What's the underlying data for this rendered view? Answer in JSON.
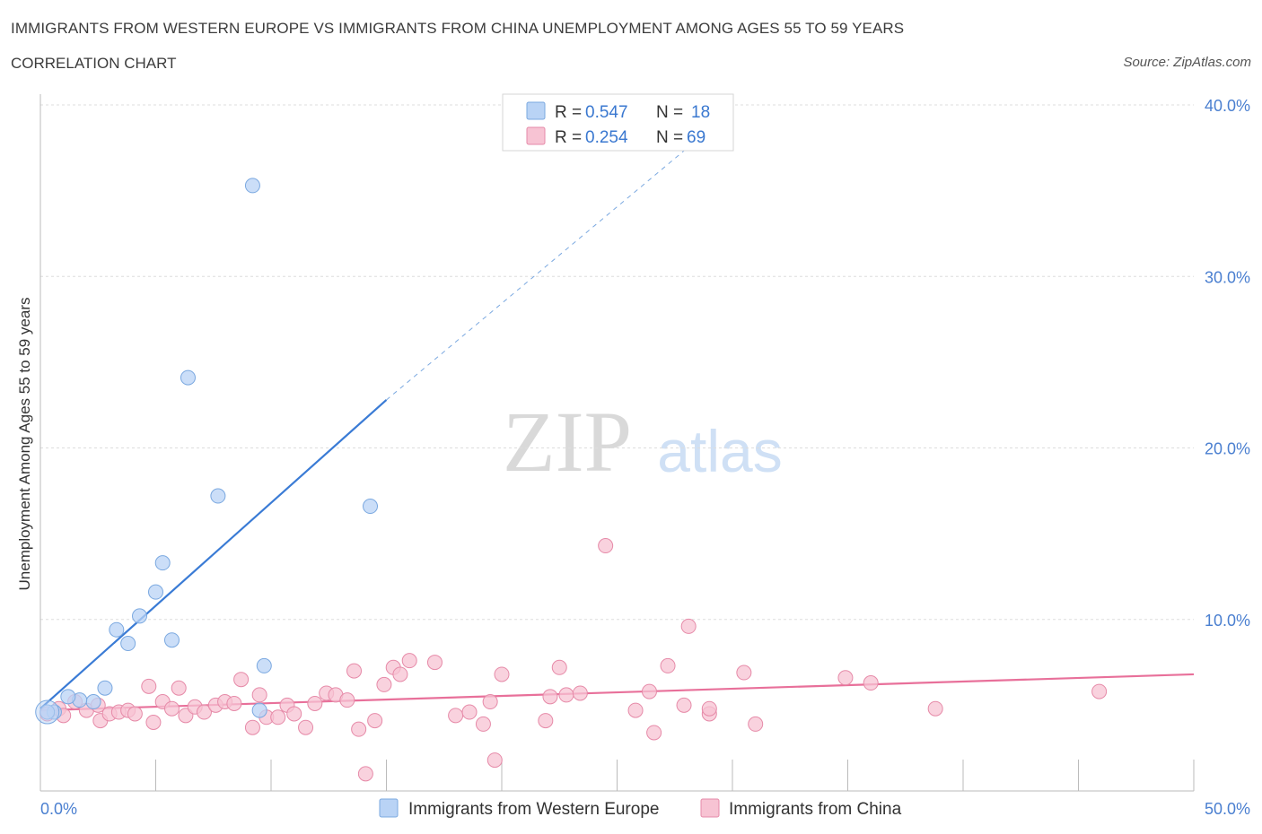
{
  "header": {
    "title": "IMMIGRANTS FROM WESTERN EUROPE VS IMMIGRANTS FROM CHINA UNEMPLOYMENT AMONG AGES 55 TO 59 YEARS",
    "subtitle": "CORRELATION CHART",
    "source": "Source: ZipAtlas.com"
  },
  "watermark": {
    "zip": "ZIP",
    "atlas": "atlas"
  },
  "legend_top": {
    "rows": [
      {
        "r_label": "R = ",
        "r_value": "0.547",
        "n_label": "N = ",
        "n_value": "18"
      },
      {
        "r_label": "R = ",
        "r_value": "0.254",
        "n_label": "N = ",
        "n_value": "69"
      }
    ]
  },
  "colors": {
    "blue_fill": "#b9d3f5",
    "blue_stroke": "#7aa8e0",
    "blue_line": "#3a7bd5",
    "pink_fill": "#f7c3d3",
    "pink_stroke": "#e68aa8",
    "pink_line": "#e8709a",
    "axis_text": "#4a7fd0",
    "grid": "#dddddd"
  },
  "chart_data": {
    "type": "scatter",
    "title": "IMMIGRANTS FROM WESTERN EUROPE VS IMMIGRANTS FROM CHINA UNEMPLOYMENT AMONG AGES 55 TO 59 YEARS",
    "xlabel": "",
    "ylabel": "Unemployment Among Ages 55 to 59 years",
    "xlim": [
      0,
      50
    ],
    "ylim": [
      0,
      40
    ],
    "x_tick_labels": [
      "0.0%",
      "50.0%"
    ],
    "y_ticks": [
      10,
      20,
      30,
      40
    ],
    "y_tick_labels": [
      "10.0%",
      "20.0%",
      "30.0%",
      "40.0%"
    ],
    "legend_position": "bottom",
    "series": [
      {
        "name": "Immigrants from Western Europe",
        "color": "blue",
        "R": 0.547,
        "N": 18,
        "trend": {
          "x0": 0,
          "y0": 4.8,
          "x1": 15,
          "y1": 22.8,
          "dash_to_x": 28.5,
          "dash_to_y": 38.0
        },
        "points": [
          [
            9.2,
            35.3
          ],
          [
            6.4,
            24.1
          ],
          [
            7.7,
            17.2
          ],
          [
            14.3,
            16.6
          ],
          [
            5.3,
            13.3
          ],
          [
            5.0,
            11.6
          ],
          [
            4.3,
            10.2
          ],
          [
            3.3,
            9.4
          ],
          [
            3.8,
            8.6
          ],
          [
            5.7,
            8.8
          ],
          [
            9.7,
            7.3
          ],
          [
            2.8,
            6.0
          ],
          [
            2.3,
            5.2
          ],
          [
            1.7,
            5.3
          ],
          [
            1.2,
            5.5
          ],
          [
            0.6,
            4.6
          ],
          [
            9.5,
            4.7
          ],
          [
            0.3,
            4.6
          ]
        ]
      },
      {
        "name": "Immigrants from China",
        "color": "pink",
        "R": 0.254,
        "N": 69,
        "trend": {
          "x0": 0,
          "y0": 4.7,
          "x1": 50,
          "y1": 6.8
        },
        "points": [
          [
            0.3,
            4.5
          ],
          [
            0.8,
            4.8
          ],
          [
            1.0,
            4.4
          ],
          [
            1.5,
            5.2
          ],
          [
            2.0,
            4.7
          ],
          [
            2.6,
            4.1
          ],
          [
            3.0,
            4.5
          ],
          [
            3.4,
            4.6
          ],
          [
            3.8,
            4.7
          ],
          [
            4.1,
            4.5
          ],
          [
            4.7,
            6.1
          ],
          [
            4.9,
            4.0
          ],
          [
            5.3,
            5.2
          ],
          [
            5.7,
            4.8
          ],
          [
            6.0,
            6.0
          ],
          [
            6.3,
            4.4
          ],
          [
            6.7,
            4.9
          ],
          [
            7.1,
            4.6
          ],
          [
            7.6,
            5.0
          ],
          [
            8.0,
            5.2
          ],
          [
            8.4,
            5.1
          ],
          [
            8.7,
            6.5
          ],
          [
            9.5,
            5.6
          ],
          [
            9.8,
            4.3
          ],
          [
            10.3,
            4.3
          ],
          [
            10.7,
            5.0
          ],
          [
            11.0,
            4.5
          ],
          [
            11.5,
            3.7
          ],
          [
            11.9,
            5.1
          ],
          [
            12.4,
            5.7
          ],
          [
            12.8,
            5.6
          ],
          [
            13.3,
            5.3
          ],
          [
            13.6,
            7.0
          ],
          [
            13.8,
            3.6
          ],
          [
            14.1,
            1.0
          ],
          [
            14.5,
            4.1
          ],
          [
            14.9,
            6.2
          ],
          [
            15.3,
            7.2
          ],
          [
            15.6,
            6.8
          ],
          [
            16.0,
            7.6
          ],
          [
            17.1,
            7.5
          ],
          [
            18.0,
            4.4
          ],
          [
            18.6,
            4.6
          ],
          [
            19.2,
            3.9
          ],
          [
            19.5,
            5.2
          ],
          [
            19.7,
            1.8
          ],
          [
            20.0,
            6.8
          ],
          [
            21.9,
            4.1
          ],
          [
            22.1,
            5.5
          ],
          [
            22.5,
            7.2
          ],
          [
            22.8,
            5.6
          ],
          [
            23.4,
            5.7
          ],
          [
            24.5,
            14.3
          ],
          [
            25.8,
            4.7
          ],
          [
            26.4,
            5.8
          ],
          [
            26.6,
            3.4
          ],
          [
            27.2,
            7.3
          ],
          [
            27.9,
            5.0
          ],
          [
            29.0,
            4.5
          ],
          [
            29.0,
            4.8
          ],
          [
            30.5,
            6.9
          ],
          [
            31.0,
            3.9
          ],
          [
            34.9,
            6.6
          ],
          [
            36.0,
            6.3
          ],
          [
            38.8,
            4.8
          ],
          [
            45.9,
            5.8
          ],
          [
            28.1,
            9.6
          ],
          [
            9.2,
            3.7
          ],
          [
            2.5,
            5.0
          ]
        ]
      }
    ]
  }
}
